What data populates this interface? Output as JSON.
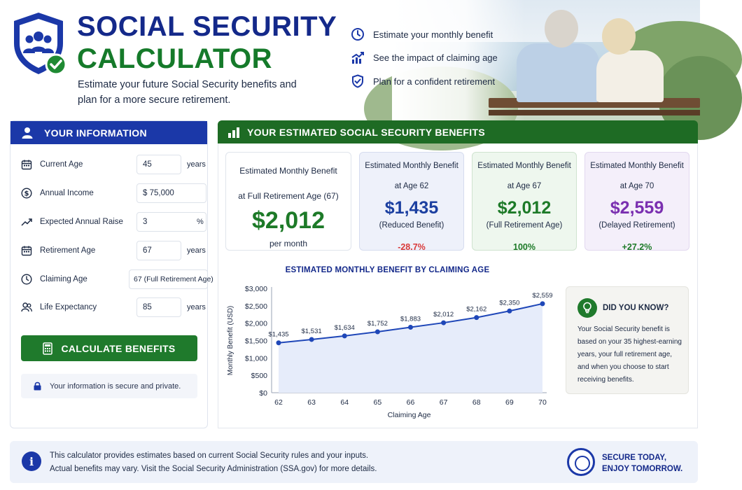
{
  "header": {
    "title_line1": "SOCIAL SECURITY",
    "title_line2": "CALCULATOR",
    "subtitle": "Estimate your future Social Security benefits and plan for a more secure retirement.",
    "features": [
      {
        "icon": "clock-icon",
        "label": "Estimate your monthly benefit"
      },
      {
        "icon": "trend-chart-icon",
        "label": "See the impact of claiming age"
      },
      {
        "icon": "shield-check-icon",
        "label": "Plan for a confident retirement"
      }
    ]
  },
  "info_panel": {
    "title": "YOUR INFORMATION",
    "fields": [
      {
        "icon": "calendar-icon",
        "label": "Current Age",
        "value": "45",
        "unit": "years"
      },
      {
        "icon": "dollar-icon",
        "label": "Annual Income",
        "value": "$ 75,000",
        "unit": ""
      },
      {
        "icon": "trend-line-icon",
        "label": "Expected Annual Raise",
        "value": "3",
        "unit": "%"
      },
      {
        "icon": "calendar-icon",
        "label": "Retirement Age",
        "value": "67",
        "unit": "years"
      },
      {
        "icon": "clock-icon",
        "label": "Claiming Age",
        "value": "67 (Full Retirement Age)",
        "unit": ""
      },
      {
        "icon": "people-icon",
        "label": "Life Expectancy",
        "value": "85",
        "unit": "years"
      }
    ],
    "calculate_label": "CALCULATE BENEFITS",
    "secure_note": "Your information is secure and private."
  },
  "benefits_panel": {
    "title": "YOUR ESTIMATED SOCIAL SECURITY BENEFITS",
    "main_card": {
      "title_line1": "Estimated Monthly Benefit",
      "title_line2": "at Full Retirement Age (67)",
      "amount": "$2,012",
      "suffix": "per month"
    },
    "cards": [
      {
        "title_line1": "Estimated Monthly Benefit",
        "title_line2": "at Age 62",
        "amount": "$1,435",
        "sub": "(Reduced Benefit)",
        "pct": "-28.7%",
        "amount_color": "#1b3fa0",
        "pct_color": "#d93a3a"
      },
      {
        "title_line1": "Estimated Monthly Benefit",
        "title_line2": "at Age 67",
        "amount": "$2,012",
        "sub": "(Full Retirement Age)",
        "pct": "100%",
        "amount_color": "#1d7a28",
        "pct_color": "#1d7a28"
      },
      {
        "title_line1": "Estimated Monthly Benefit",
        "title_line2": "at Age 70",
        "amount": "$2,559",
        "sub": "(Delayed Retirement)",
        "pct": "+27.2%",
        "amount_color": "#7a2fb0",
        "pct_color": "#1d7a28"
      }
    ]
  },
  "chart_data": {
    "type": "area",
    "title": "ESTIMATED MONTHLY BENEFIT BY CLAIMING AGE",
    "xlabel": "Claiming Age",
    "ylabel": "Monthly Benefit (USD)",
    "x": [
      62,
      63,
      64,
      65,
      66,
      67,
      68,
      69,
      70
    ],
    "values": [
      1435,
      1531,
      1634,
      1752,
      1883,
      2012,
      2162,
      2350,
      2559
    ],
    "data_labels": [
      "$1,435",
      "$1,531",
      "$1,634",
      "$1,752",
      "$1,883",
      "$2,012",
      "$2,162",
      "$2,350",
      "$2,559"
    ],
    "ylim": [
      0,
      3000
    ],
    "yticks": [
      0,
      500,
      1000,
      1500,
      2000,
      2500,
      3000
    ],
    "ytick_labels": [
      "$0",
      "$500",
      "$1,000",
      "$1,500",
      "$2,000",
      "$2,500",
      "$3,000"
    ],
    "grid": false,
    "color": "#1f47b8"
  },
  "did_you_know": {
    "title": "DID YOU KNOW?",
    "body": "Your Social Security benefit is based on your 35 highest-earning years, your full retirement age, and when you choose to start receiving benefits."
  },
  "footer": {
    "line1": "This calculator provides estimates based on current Social Security rules and your inputs.",
    "line2": "Actual benefits may vary. Visit the Social Security Administration (SSA.gov) for more details.",
    "tagline1": "SECURE TODAY,",
    "tagline2": "ENJOY TOMORROW."
  }
}
